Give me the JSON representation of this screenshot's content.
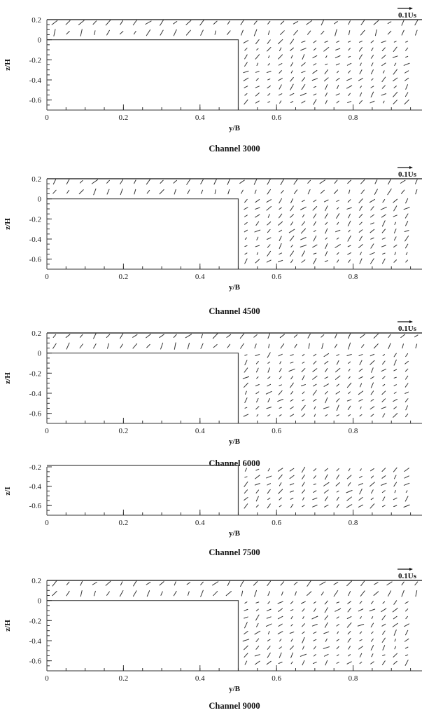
{
  "chart_data": [
    {
      "type": "vector-field",
      "caption": "Channel 3000",
      "xlabel": "y/B",
      "ylabel": "z/H",
      "xlim": [
        0,
        0.98
      ],
      "ylim": [
        -0.7,
        0.2
      ],
      "xticks": [
        "0",
        "0.2",
        "0.4",
        "0.6",
        "0.8"
      ],
      "yticks": [
        "0.2",
        "0",
        "-0.2",
        "-0.4",
        "-0.6"
      ],
      "scale_label": "0.1Us",
      "scale_value": 0.1,
      "block": {
        "y_max": 0.5,
        "z_top": 0.0
      },
      "has_upper_region": true,
      "pattern_seed": 3
    },
    {
      "type": "vector-field",
      "caption": "Channel 4500",
      "xlabel": "y/B",
      "ylabel": "z/H",
      "xlim": [
        0,
        0.98
      ],
      "ylim": [
        -0.7,
        0.2
      ],
      "xticks": [
        "0",
        "0.2",
        "0.4",
        "0.6",
        "0.8"
      ],
      "yticks": [
        "0.2",
        "0",
        "-0.2",
        "-0.4",
        "-0.6"
      ],
      "scale_label": "0.1Us",
      "scale_value": 0.1,
      "block": {
        "y_max": 0.5,
        "z_top": 0.0
      },
      "has_upper_region": true,
      "pattern_seed": 5
    },
    {
      "type": "vector-field",
      "caption": "Channel 6000",
      "xlabel": "y/B",
      "ylabel": "z/H",
      "xlim": [
        0,
        0.98
      ],
      "ylim": [
        -0.7,
        0.2
      ],
      "xticks": [
        "0",
        "0.2",
        "0.4",
        "0.6",
        "0.8"
      ],
      "yticks": [
        "0.2",
        "0",
        "-0.2",
        "-0.4",
        "-0.6"
      ],
      "scale_label": "0.1Us",
      "scale_value": 0.1,
      "block": {
        "y_max": 0.5,
        "z_top": 0.0
      },
      "has_upper_region": true,
      "pattern_seed": 7
    },
    {
      "type": "vector-field",
      "caption": "Channel 7500",
      "xlabel": "y/B",
      "ylabel": "z/I",
      "xlim": [
        0,
        0.98
      ],
      "ylim": [
        -0.7,
        -0.2
      ],
      "xticks": [
        "0",
        "0.2",
        "0.4",
        "0.6",
        "0.8"
      ],
      "yticks": [
        "-0.2",
        "-0.4",
        "-0.6"
      ],
      "scale_label": "",
      "scale_value": 0.1,
      "block": {
        "y_max": 0.5,
        "z_top": 0.0
      },
      "has_upper_region": false,
      "pattern_seed": 11
    },
    {
      "type": "vector-field",
      "caption": "Channel 9000",
      "xlabel": "y/B",
      "ylabel": "z/H",
      "xlim": [
        0,
        0.98
      ],
      "ylim": [
        -0.7,
        0.2
      ],
      "xticks": [
        "0",
        "0.2",
        "0.4",
        "0.6",
        "0.8"
      ],
      "yticks": [
        "0.2",
        "0",
        "-0.2",
        "-0.4",
        "-0.6"
      ],
      "scale_label": "0.1Us",
      "scale_value": 0.1,
      "block": {
        "y_max": 0.5,
        "z_top": 0.0
      },
      "has_upper_region": true,
      "pattern_seed": 13
    }
  ]
}
